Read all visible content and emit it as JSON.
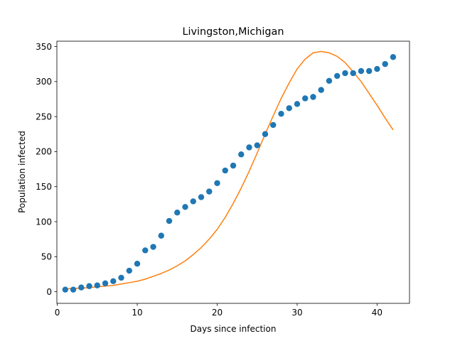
{
  "chart_data": {
    "type": "scatter",
    "title": "Livingston,Michigan",
    "xlabel": "Days since infection",
    "ylabel": "Population infected",
    "xlim": [
      -0.05,
      44.05
    ],
    "ylim": [
      -16.6,
      357.6
    ],
    "xticks": [
      0,
      10,
      20,
      30,
      40
    ],
    "yticks": [
      0,
      50,
      100,
      150,
      200,
      250,
      300,
      350
    ],
    "grid": false,
    "legend": "none",
    "series": [
      {
        "type": "scatter",
        "color": "#1f77b4",
        "x": [
          1,
          2,
          3,
          4,
          5,
          6,
          7,
          8,
          9,
          10,
          11,
          12,
          13,
          14,
          15,
          16,
          17,
          18,
          19,
          20,
          21,
          22,
          23,
          24,
          25,
          26,
          27,
          28,
          29,
          30,
          31,
          32,
          33,
          34,
          35,
          36,
          37,
          38,
          39,
          40,
          41,
          42
        ],
        "y": [
          3,
          3,
          6,
          8,
          9,
          12,
          15,
          20,
          30,
          40,
          59,
          64,
          80,
          101,
          113,
          121,
          129,
          135,
          143,
          155,
          173,
          180,
          196,
          206,
          209,
          225,
          238,
          254,
          262,
          268,
          276,
          278,
          288,
          301,
          308,
          312,
          312,
          315,
          315,
          318,
          325,
          335
        ]
      },
      {
        "type": "line",
        "color": "#ff7f0e",
        "x": [
          1,
          2,
          3,
          4,
          5,
          6,
          7,
          8,
          9,
          10,
          11,
          12,
          13,
          14,
          15,
          16,
          17,
          18,
          19,
          20,
          21,
          22,
          23,
          24,
          25,
          26,
          27,
          28,
          29,
          30,
          31,
          32,
          33,
          34,
          35,
          36,
          37,
          38,
          39,
          40,
          41,
          42
        ],
        "y": [
          4,
          5,
          5,
          6,
          7,
          8,
          9,
          11,
          13,
          15,
          18,
          22,
          26,
          31,
          37,
          44,
          53,
          63,
          75,
          89,
          106,
          126,
          148,
          172,
          198,
          225,
          251,
          276,
          298,
          318,
          332,
          341,
          343,
          341,
          336,
          327,
          314,
          300,
          283,
          266,
          248,
          231
        ]
      }
    ]
  }
}
